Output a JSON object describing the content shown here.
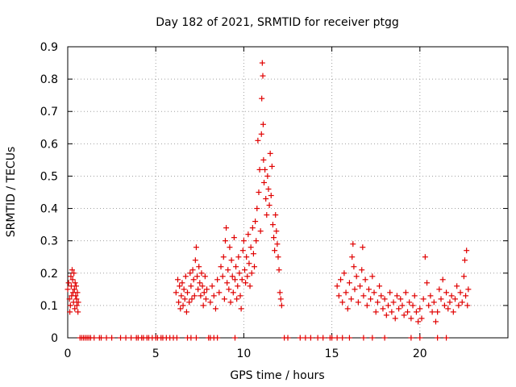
{
  "chart_data": {
    "type": "scatter",
    "title": "Day 182 of 2021, SRMTID for receiver ptgg",
    "xlabel": "GPS time / hours",
    "ylabel": "SRMTID / TECUs",
    "xlim": [
      0,
      25
    ],
    "ylim": [
      0,
      0.9
    ],
    "xticks": [
      0,
      5,
      10,
      15,
      20
    ],
    "xtick_labels": [
      "0",
      "5",
      "10",
      "15",
      "20"
    ],
    "yticks": [
      0,
      0.1,
      0.2,
      0.3,
      0.4,
      0.5,
      0.6,
      0.7,
      0.8,
      0.9
    ],
    "ytick_labels": [
      "0",
      "0.1",
      "0.2",
      "0.3",
      "0.4",
      "0.5",
      "0.6",
      "0.7",
      "0.8",
      "0.9"
    ],
    "grid": true,
    "marker": "+",
    "color": "#e00000",
    "series": [
      {
        "name": "SRMTID",
        "x": [
          0.0,
          0.05,
          0.1,
          0.12,
          0.15,
          0.18,
          0.2,
          0.22,
          0.25,
          0.28,
          0.3,
          0.33,
          0.35,
          0.38,
          0.4,
          0.42,
          0.45,
          0.48,
          0.5,
          0.52,
          0.55,
          0.58,
          0.6,
          0.7,
          0.8,
          0.9,
          1.0,
          1.1,
          1.2,
          1.3,
          1.5,
          1.8,
          1.9,
          2.2,
          2.5,
          3.0,
          3.3,
          3.6,
          3.9,
          4.0,
          4.2,
          4.3,
          4.5,
          4.6,
          4.8,
          5.0,
          5.1,
          5.3,
          5.4,
          5.6,
          5.8,
          6.0,
          6.2,
          6.8,
          7.0,
          7.3,
          8.0,
          8.1,
          8.3,
          8.5,
          9.5,
          6.15,
          6.25,
          6.3,
          6.35,
          6.4,
          6.45,
          6.5,
          6.55,
          6.6,
          6.65,
          6.7,
          6.75,
          6.8,
          6.9,
          6.95,
          7.0,
          7.05,
          7.1,
          7.15,
          7.2,
          7.25,
          7.3,
          7.35,
          7.4,
          7.45,
          7.5,
          7.55,
          7.6,
          7.65,
          7.7,
          7.75,
          7.8,
          7.85,
          7.9,
          8.1,
          8.2,
          8.3,
          8.4,
          8.5,
          8.6,
          8.7,
          8.8,
          8.85,
          8.9,
          8.95,
          9.0,
          9.05,
          9.1,
          9.15,
          9.2,
          9.25,
          9.3,
          9.35,
          9.4,
          9.45,
          9.5,
          9.55,
          9.6,
          9.65,
          9.7,
          9.75,
          9.8,
          9.85,
          9.9,
          9.95,
          10.0,
          10.05,
          10.1,
          10.15,
          10.2,
          10.25,
          10.3,
          10.35,
          10.4,
          10.45,
          10.5,
          10.55,
          10.6,
          10.65,
          10.7,
          10.75,
          10.8,
          10.85,
          10.9,
          10.95,
          11.0,
          11.02,
          11.05,
          11.08,
          11.1,
          11.12,
          11.15,
          11.2,
          11.25,
          11.3,
          11.35,
          11.4,
          11.45,
          11.5,
          11.55,
          11.6,
          11.65,
          11.7,
          11.75,
          11.8,
          11.85,
          11.9,
          11.95,
          12.0,
          12.05,
          12.1,
          12.15,
          12.3,
          12.5,
          13.2,
          13.5,
          13.8,
          14.2,
          14.5,
          14.9,
          15.0,
          15.3,
          15.6,
          16.0,
          16.8,
          17.3,
          18.0,
          19.5,
          20.0,
          21.0,
          21.5,
          15.3,
          15.4,
          15.5,
          15.6,
          15.7,
          15.8,
          15.9,
          16.0,
          16.1,
          16.15,
          16.2,
          16.25,
          16.3,
          16.4,
          16.5,
          16.6,
          16.7,
          16.75,
          16.8,
          16.9,
          17.0,
          17.1,
          17.2,
          17.3,
          17.4,
          17.5,
          17.6,
          17.7,
          17.8,
          17.9,
          18.0,
          18.1,
          18.2,
          18.3,
          18.4,
          18.5,
          18.6,
          18.7,
          18.8,
          18.9,
          19.0,
          19.1,
          19.2,
          19.3,
          19.4,
          19.5,
          19.6,
          19.7,
          19.8,
          19.9,
          20.0,
          20.1,
          20.2,
          20.3,
          20.4,
          20.5,
          20.6,
          20.7,
          20.8,
          20.9,
          21.0,
          21.1,
          21.2,
          21.3,
          21.4,
          21.5,
          21.6,
          21.7,
          21.8,
          21.9,
          22.0,
          22.1,
          22.2,
          22.3,
          22.4,
          22.5,
          22.55,
          22.6,
          22.65,
          22.7,
          22.75
        ],
        "y": [
          0.15,
          0.17,
          0.12,
          0.08,
          0.1,
          0.19,
          0.16,
          0.13,
          0.21,
          0.18,
          0.14,
          0.11,
          0.2,
          0.15,
          0.09,
          0.17,
          0.13,
          0.16,
          0.12,
          0.1,
          0.14,
          0.08,
          0.11,
          0.0,
          0.0,
          0.0,
          0.0,
          0.0,
          0.0,
          0.0,
          0.0,
          0.0,
          0.0,
          0.0,
          0.0,
          0.0,
          0.0,
          0.0,
          0.0,
          0.0,
          0.0,
          0.0,
          0.0,
          0.0,
          0.0,
          0.0,
          0.0,
          0.0,
          0.0,
          0.0,
          0.0,
          0.0,
          0.0,
          0.0,
          0.0,
          0.0,
          0.0,
          0.0,
          0.0,
          0.0,
          0.0,
          0.14,
          0.18,
          0.11,
          0.16,
          0.09,
          0.13,
          0.17,
          0.1,
          0.15,
          0.12,
          0.19,
          0.08,
          0.14,
          0.11,
          0.2,
          0.16,
          0.12,
          0.21,
          0.18,
          0.13,
          0.24,
          0.28,
          0.19,
          0.15,
          0.22,
          0.17,
          0.13,
          0.2,
          0.16,
          0.1,
          0.14,
          0.19,
          0.12,
          0.15,
          0.11,
          0.16,
          0.13,
          0.09,
          0.18,
          0.14,
          0.22,
          0.19,
          0.25,
          0.12,
          0.3,
          0.34,
          0.17,
          0.21,
          0.15,
          0.28,
          0.11,
          0.24,
          0.19,
          0.14,
          0.31,
          0.18,
          0.22,
          0.12,
          0.16,
          0.25,
          0.2,
          0.13,
          0.09,
          0.18,
          0.27,
          0.3,
          0.21,
          0.17,
          0.25,
          0.19,
          0.32,
          0.23,
          0.16,
          0.28,
          0.2,
          0.34,
          0.26,
          0.22,
          0.36,
          0.3,
          0.4,
          0.61,
          0.45,
          0.52,
          0.33,
          0.63,
          0.74,
          0.85,
          0.81,
          0.66,
          0.55,
          0.48,
          0.52,
          0.43,
          0.38,
          0.5,
          0.46,
          0.41,
          0.57,
          0.44,
          0.53,
          0.35,
          0.31,
          0.27,
          0.38,
          0.33,
          0.29,
          0.25,
          0.21,
          0.14,
          0.12,
          0.1,
          0.0,
          0.0,
          0.0,
          0.0,
          0.0,
          0.0,
          0.0,
          0.0,
          0.0,
          0.0,
          0.0,
          0.0,
          0.0,
          0.0,
          0.0,
          0.0,
          0.0,
          0.0,
          0.0,
          0.16,
          0.13,
          0.18,
          0.11,
          0.2,
          0.14,
          0.09,
          0.17,
          0.12,
          0.25,
          0.29,
          0.22,
          0.15,
          0.19,
          0.11,
          0.16,
          0.21,
          0.28,
          0.13,
          0.18,
          0.1,
          0.15,
          0.12,
          0.19,
          0.14,
          0.08,
          0.11,
          0.16,
          0.13,
          0.09,
          0.12,
          0.07,
          0.1,
          0.14,
          0.08,
          0.11,
          0.06,
          0.13,
          0.09,
          0.12,
          0.1,
          0.07,
          0.14,
          0.08,
          0.11,
          0.06,
          0.1,
          0.13,
          0.08,
          0.05,
          0.09,
          0.06,
          0.12,
          0.25,
          0.17,
          0.1,
          0.13,
          0.08,
          0.11,
          0.05,
          0.08,
          0.15,
          0.12,
          0.18,
          0.1,
          0.14,
          0.09,
          0.11,
          0.13,
          0.08,
          0.12,
          0.16,
          0.1,
          0.14,
          0.11,
          0.19,
          0.24,
          0.13,
          0.27,
          0.1,
          0.15
        ]
      }
    ]
  }
}
